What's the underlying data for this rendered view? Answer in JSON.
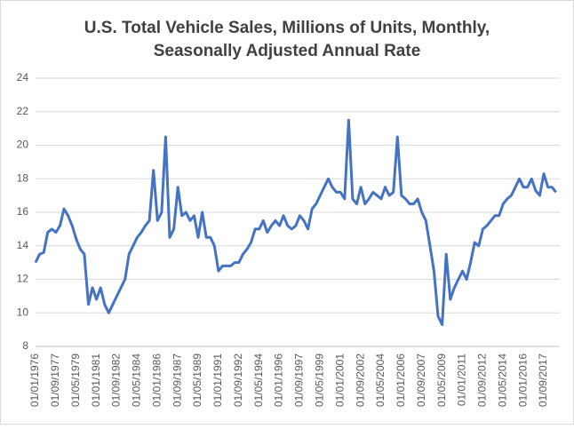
{
  "chart_data": {
    "type": "line",
    "title": [
      "U.S. Total Vehicle Sales, Millions of Units, Monthly,",
      "Seasonally Adjusted Annual Rate"
    ],
    "categories": [
      "01/01/1976",
      null,
      null,
      null,
      null,
      "01/09/1977",
      null,
      null,
      null,
      null,
      "01/05/1979",
      null,
      null,
      null,
      null,
      "01/01/1981",
      null,
      null,
      null,
      null,
      "01/09/1982",
      null,
      null,
      null,
      null,
      "01/05/1984",
      null,
      null,
      null,
      null,
      "01/01/1986",
      null,
      null,
      null,
      null,
      "01/09/1987",
      null,
      null,
      null,
      null,
      "01/05/1989",
      null,
      null,
      null,
      null,
      "01/01/1991",
      null,
      null,
      null,
      null,
      "01/09/1992",
      null,
      null,
      null,
      null,
      "01/05/1994",
      null,
      null,
      null,
      null,
      "01/01/1996",
      null,
      null,
      null,
      null,
      "01/09/1997",
      null,
      null,
      null,
      null,
      "01/05/1999",
      null,
      null,
      null,
      null,
      "01/01/2001",
      null,
      null,
      null,
      null,
      "01/09/2002",
      null,
      null,
      null,
      null,
      "01/05/2004",
      null,
      null,
      null,
      null,
      "01/01/2006",
      null,
      null,
      null,
      null,
      "01/09/2007",
      null,
      null,
      null,
      null,
      "01/05/2009",
      null,
      null,
      null,
      null,
      "01/01/2011",
      null,
      null,
      null,
      null,
      "01/09/2012",
      null,
      null,
      null,
      null,
      "01/05/2014",
      null,
      null,
      null,
      null,
      "01/01/2016",
      null,
      null,
      null,
      null,
      "01/09/2017",
      null,
      null,
      null
    ],
    "series": [
      {
        "name": "Total Vehicle Sales",
        "color": "#4472c4",
        "values": [
          13.0,
          13.5,
          13.6,
          14.8,
          15.0,
          14.8,
          15.2,
          16.2,
          15.8,
          15.2,
          14.4,
          13.8,
          13.5,
          10.5,
          11.5,
          10.8,
          11.5,
          10.5,
          10.0,
          10.5,
          11.0,
          11.5,
          12.0,
          13.5,
          14.0,
          14.5,
          14.8,
          15.2,
          15.5,
          18.5,
          15.5,
          16.0,
          20.5,
          14.5,
          15.0,
          17.5,
          15.8,
          16.0,
          15.5,
          15.8,
          14.5,
          16.0,
          14.5,
          14.5,
          14.0,
          12.5,
          12.8,
          12.8,
          12.8,
          13.0,
          13.0,
          13.5,
          13.8,
          14.2,
          15.0,
          15.0,
          15.5,
          14.8,
          15.2,
          15.5,
          15.2,
          15.8,
          15.2,
          15.0,
          15.2,
          15.8,
          15.5,
          15.0,
          16.2,
          16.5,
          17.0,
          17.5,
          18.0,
          17.5,
          17.2,
          17.2,
          16.8,
          21.5,
          16.8,
          16.5,
          17.5,
          16.5,
          16.8,
          17.2,
          17.0,
          16.8,
          17.5,
          17.0,
          17.2,
          20.5,
          17.0,
          16.8,
          16.5,
          16.5,
          16.8,
          16.0,
          15.5,
          14.0,
          12.5,
          9.8,
          9.3,
          13.5,
          10.8,
          11.5,
          12.0,
          12.5,
          12.0,
          13.0,
          14.2,
          14.0,
          15.0,
          15.2,
          15.5,
          15.8,
          15.8,
          16.5,
          16.8,
          17.0,
          17.5,
          18.0,
          17.5,
          17.5,
          18.0,
          17.3,
          17.0,
          18.3,
          17.5,
          17.5,
          17.2
        ]
      }
    ],
    "ylim": [
      8,
      24
    ],
    "yticks": [
      8,
      10,
      12,
      14,
      16,
      18,
      20,
      22,
      24
    ],
    "grid": true
  }
}
